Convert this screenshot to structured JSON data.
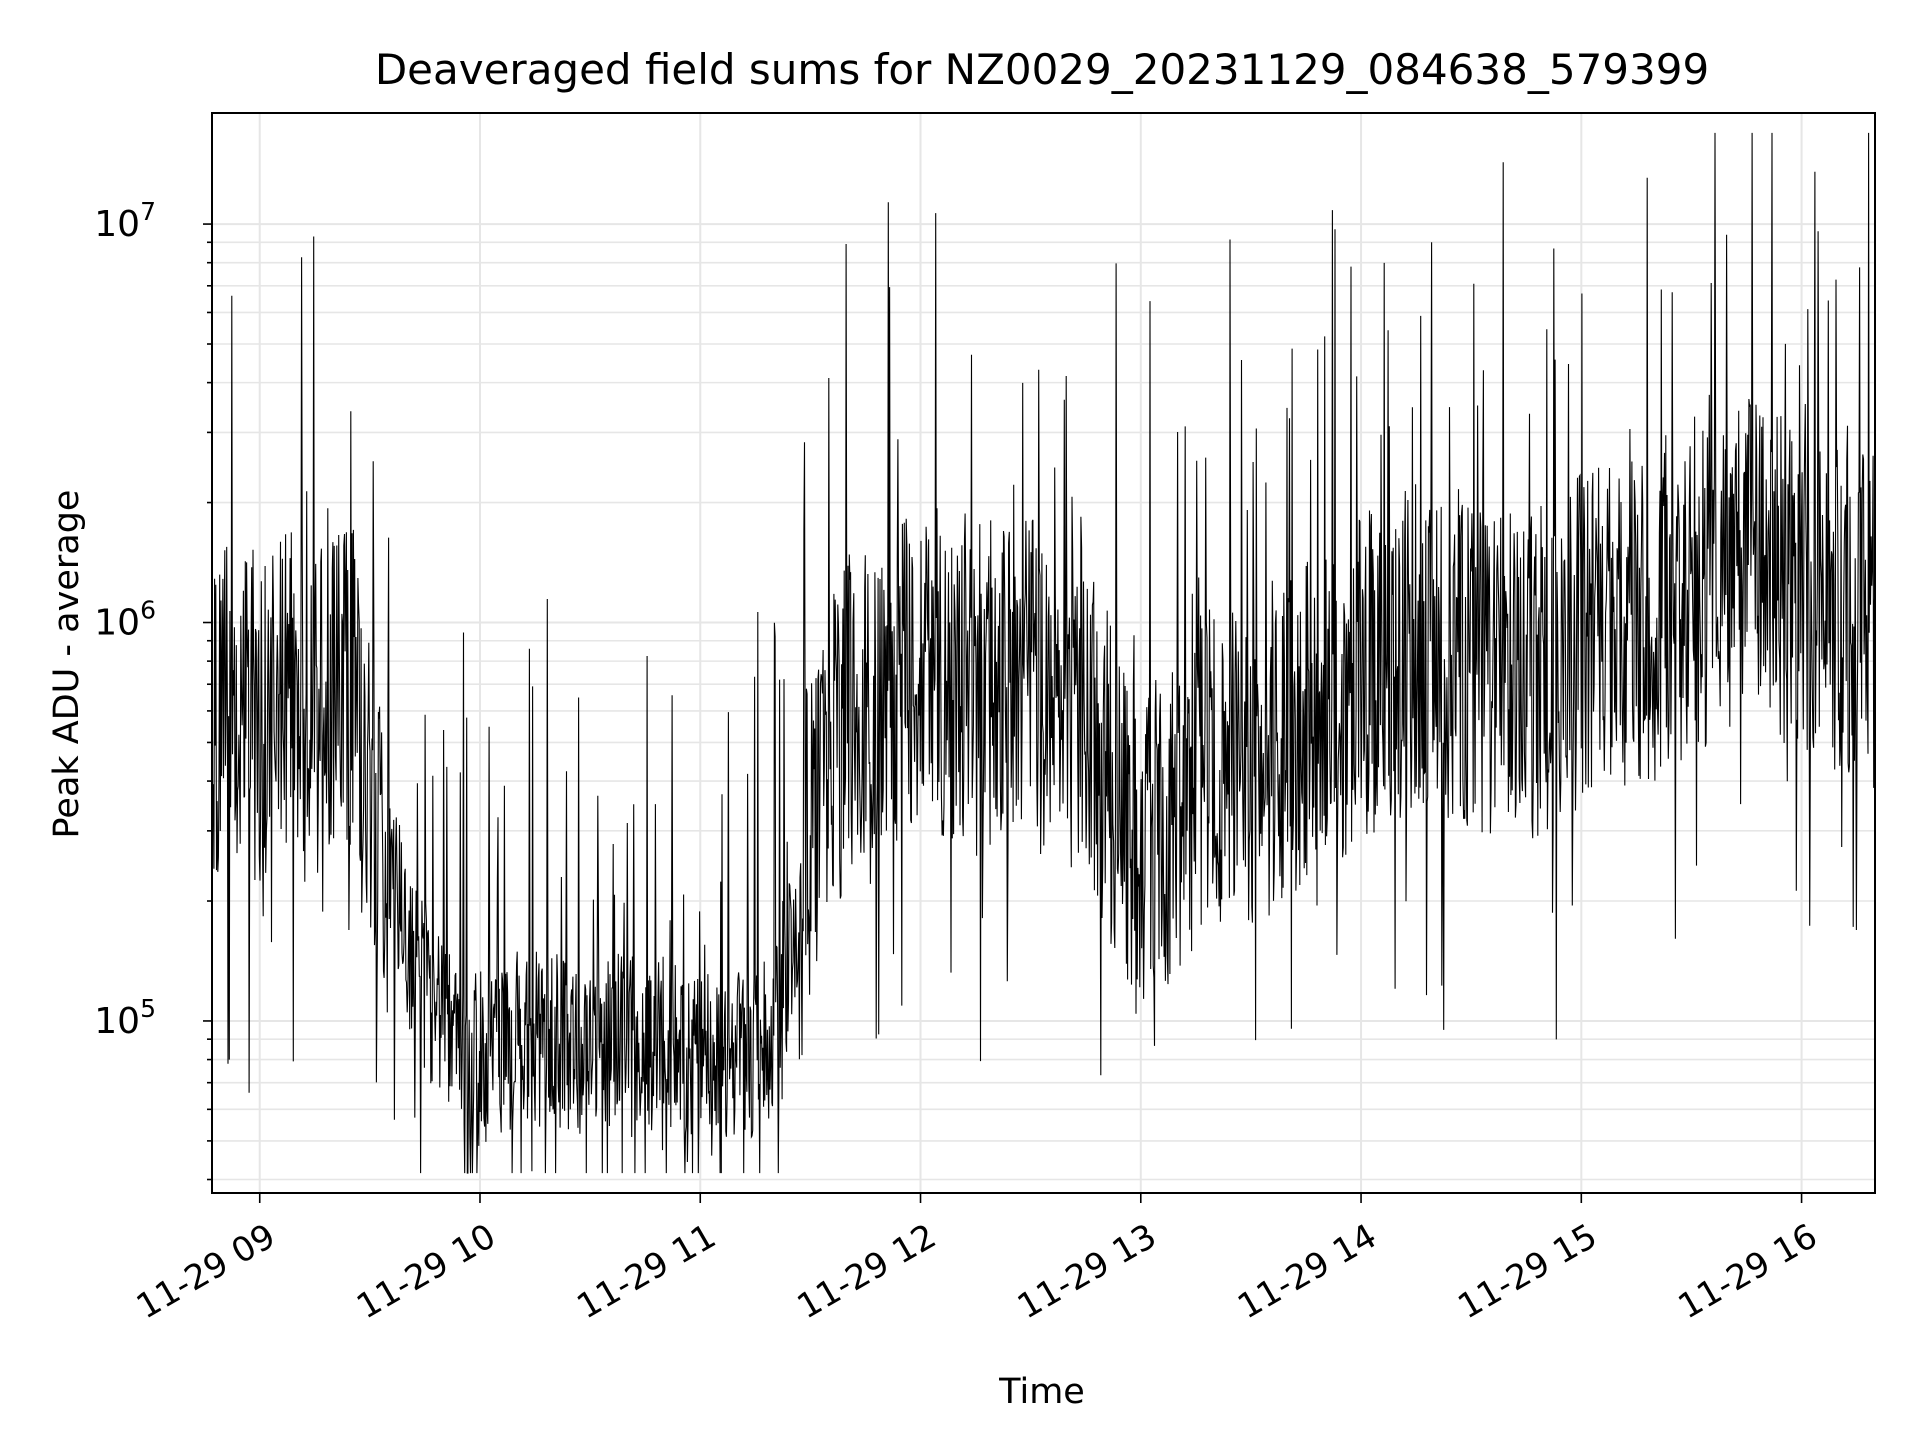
{
  "chart_data": {
    "type": "line",
    "title": "Deaveraged field sums for NZ0029_20231129_084638_579399",
    "xlabel": "Time",
    "ylabel": "Peak ADU - average",
    "y_scale": "log",
    "ylim": [
      37000,
      19000000
    ],
    "xlim": [
      "2023-11-29 08:47",
      "2023-11-29 16:20"
    ],
    "grid": true,
    "line_color": "#000000",
    "grid_color": "#e6e6e6",
    "x_ticks": [
      {
        "t": "2023-11-29 09:00",
        "label": "11-29 09"
      },
      {
        "t": "2023-11-29 10:00",
        "label": "11-29 10"
      },
      {
        "t": "2023-11-29 11:00",
        "label": "11-29 11"
      },
      {
        "t": "2023-11-29 12:00",
        "label": "11-29 12"
      },
      {
        "t": "2023-11-29 13:00",
        "label": "11-29 13"
      },
      {
        "t": "2023-11-29 14:00",
        "label": "11-29 14"
      },
      {
        "t": "2023-11-29 15:00",
        "label": "11-29 15"
      },
      {
        "t": "2023-11-29 16:00",
        "label": "11-29 16"
      }
    ],
    "y_ticks": [
      {
        "value": 100000,
        "base": "10",
        "exp": "5"
      },
      {
        "value": 1000000,
        "base": "10",
        "exp": "6"
      },
      {
        "value": 10000000,
        "base": "10",
        "exp": "7"
      }
    ],
    "series": [
      {
        "x": [
          "2023-11-29 08:47",
          "2023-11-29 08:50",
          "2023-11-29 08:55",
          "2023-11-29 09:00",
          "2023-11-29 09:05",
          "2023-11-29 09:10",
          "2023-11-29 09:15",
          "2023-11-29 09:20",
          "2023-11-29 09:25",
          "2023-11-29 09:30",
          "2023-11-29 09:40",
          "2023-11-29 09:50",
          "2023-11-29 10:00",
          "2023-11-29 10:10",
          "2023-11-29 10:20",
          "2023-11-29 10:30",
          "2023-11-29 10:40",
          "2023-11-29 10:50",
          "2023-11-29 11:00",
          "2023-11-29 11:10",
          "2023-11-29 11:20",
          "2023-11-29 11:30",
          "2023-11-29 11:40",
          "2023-11-29 11:50",
          "2023-11-29 12:00",
          "2023-11-29 12:15",
          "2023-11-29 12:30",
          "2023-11-29 12:45",
          "2023-11-29 13:00",
          "2023-11-29 13:15",
          "2023-11-29 13:30",
          "2023-11-29 13:45",
          "2023-11-29 14:00",
          "2023-11-29 14:15",
          "2023-11-29 14:30",
          "2023-11-29 14:45",
          "2023-11-29 15:00",
          "2023-11-29 15:15",
          "2023-11-29 15:30",
          "2023-11-29 15:45",
          "2023-11-29 16:00",
          "2023-11-29 16:10",
          "2023-11-29 16:20"
        ],
        "y": [
          500000,
          600000,
          700000,
          550000,
          650000,
          700000,
          600000,
          650000,
          700000,
          400000,
          160000,
          95000,
          80000,
          90000,
          90000,
          85000,
          90000,
          85000,
          85000,
          80000,
          90000,
          300000,
          600000,
          700000,
          800000,
          700000,
          700000,
          600000,
          250000,
          400000,
          450000,
          550000,
          700000,
          900000,
          800000,
          700000,
          900000,
          1000000,
          1100000,
          1500000,
          1200000,
          1100000,
          1000000
        ]
      }
    ]
  }
}
